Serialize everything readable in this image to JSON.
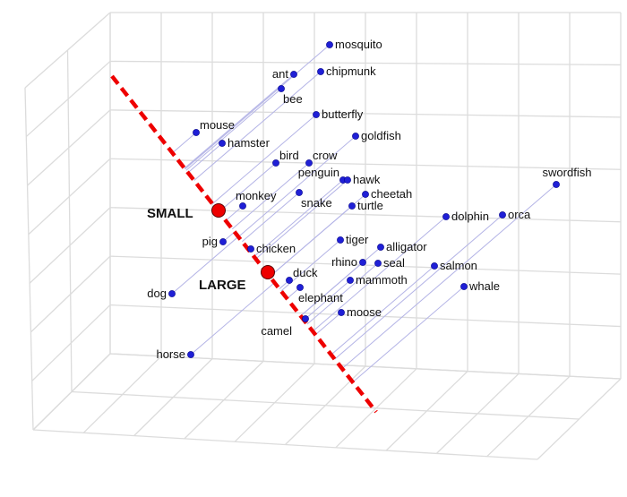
{
  "colors": {
    "grid": "#dcdcdc",
    "point": "#1f1fd6",
    "projection_line": "#b4b4e6",
    "axis_line": "#ee0000",
    "axis_marker": "#ee0000"
  },
  "axis": {
    "small_label": "SMALL",
    "large_label": "LARGE"
  },
  "words": [
    "mosquito",
    "ant",
    "chipmunk",
    "bee",
    "butterfly",
    "mouse",
    "hamster",
    "goldfish",
    "bird",
    "crow",
    "penguin",
    "hawk",
    "monkey",
    "snake",
    "cheetah",
    "turtle",
    "swordfish",
    "dolphin",
    "orca",
    "pig",
    "chicken",
    "tiger",
    "alligator",
    "rhino",
    "seal",
    "salmon",
    "duck",
    "elephant",
    "mammoth",
    "whale",
    "moose",
    "camel",
    "dog",
    "horse"
  ]
}
